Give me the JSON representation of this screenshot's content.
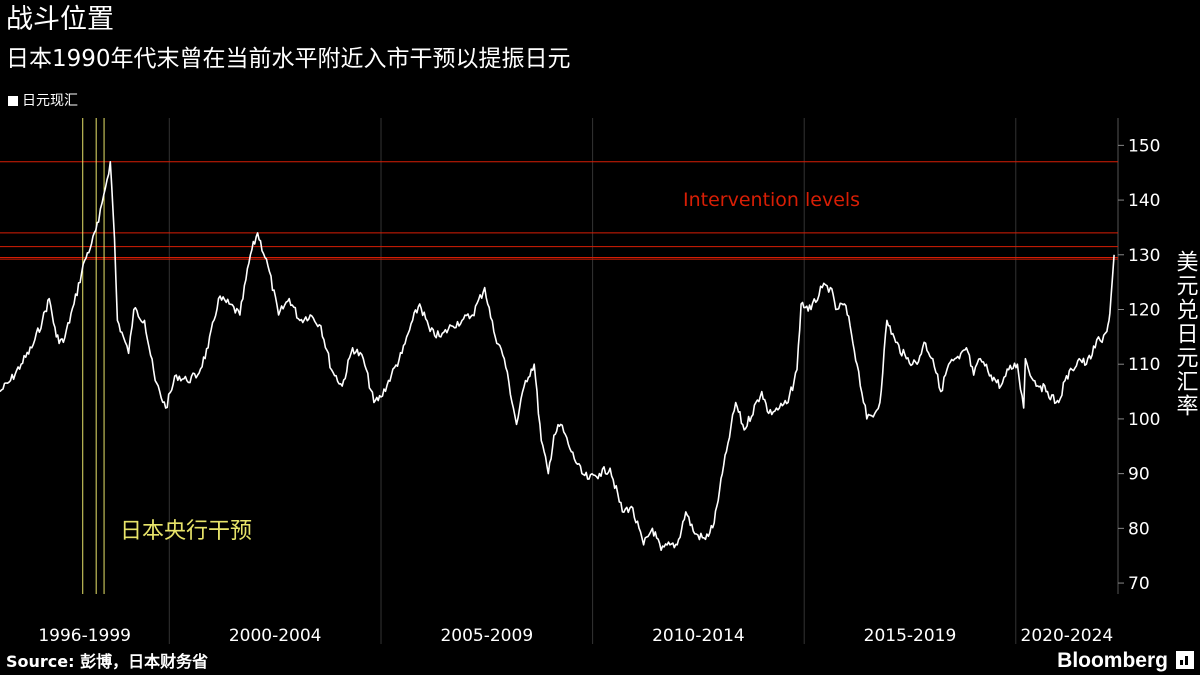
{
  "header": {
    "title": "战斗位置",
    "subtitle": "日本1990年代末曾在当前水平附近入市干预以提振日元"
  },
  "legend": {
    "label": "日元现汇"
  },
  "footer": {
    "source": "Source: 彭博，日本财务省",
    "brand": "Bloomberg"
  },
  "colors": {
    "background": "#000000",
    "series": "#ffffff",
    "intervention_levels": "#d81e05",
    "boj_intervention": "#e8e46a",
    "grid": "#333333"
  },
  "icons": {
    "brand_mark": "bloomberg-terminal-icon"
  },
  "chart_data": {
    "type": "line",
    "title": "战斗位置",
    "subtitle": "日本1990年代末曾在当前水平附近入市干预以提振日元",
    "ylabel": "美元兑日元汇率",
    "xlabel": "",
    "ylim": [
      68,
      155
    ],
    "xlim": [
      "1996-01-01",
      "2022-06-01"
    ],
    "y_ticks": [
      70,
      80,
      90,
      100,
      110,
      120,
      130,
      140,
      150
    ],
    "grid": false,
    "legend_position": "top-left",
    "period_labels": [
      {
        "label": "1996-1999",
        "start": "1996-01-01",
        "end": "2000-01-01"
      },
      {
        "label": "2000-2004",
        "start": "2000-01-01",
        "end": "2005-01-01"
      },
      {
        "label": "2005-2009",
        "start": "2005-01-01",
        "end": "2010-01-01"
      },
      {
        "label": "2010-2014",
        "start": "2010-01-01",
        "end": "2015-01-01"
      },
      {
        "label": "2015-2019",
        "start": "2015-01-01",
        "end": "2020-01-01"
      },
      {
        "label": "2020-2024",
        "start": "2020-01-01",
        "end": "2022-06-01"
      }
    ],
    "series": [
      {
        "name": "日元现汇",
        "x": [
          "1996-01-01",
          "1996-04-01",
          "1996-07-01",
          "1996-10-01",
          "1997-01-01",
          "1997-03-01",
          "1997-05-01",
          "1997-07-01",
          "1997-10-01",
          "1998-01-01",
          "1998-03-01",
          "1998-05-01",
          "1998-06-15",
          "1998-08-10",
          "1998-09-15",
          "1998-10-10",
          "1998-12-01",
          "1999-01-15",
          "1999-03-01",
          "1999-06-01",
          "1999-09-01",
          "1999-12-01",
          "2000-03-01",
          "2000-06-01",
          "2000-09-01",
          "2000-12-01",
          "2001-03-01",
          "2001-06-01",
          "2001-09-01",
          "2001-12-01",
          "2002-02-01",
          "2002-05-01",
          "2002-08-01",
          "2002-11-01",
          "2003-02-01",
          "2003-05-01",
          "2003-08-01",
          "2003-11-01",
          "2004-02-01",
          "2004-05-01",
          "2004-08-01",
          "2004-11-01",
          "2005-01-01",
          "2005-04-01",
          "2005-07-01",
          "2005-10-01",
          "2005-12-01",
          "2006-03-01",
          "2006-06-01",
          "2006-09-01",
          "2006-12-01",
          "2007-03-01",
          "2007-06-15",
          "2007-09-01",
          "2007-12-01",
          "2008-03-15",
          "2008-06-01",
          "2008-08-15",
          "2008-10-15",
          "2008-12-15",
          "2009-02-01",
          "2009-04-01",
          "2009-07-01",
          "2009-10-01",
          "2009-12-01",
          "2010-03-01",
          "2010-06-01",
          "2010-09-15",
          "2010-12-01",
          "2011-03-17",
          "2011-06-01",
          "2011-08-15",
          "2011-10-31",
          "2012-01-01",
          "2012-03-15",
          "2012-06-01",
          "2012-09-01",
          "2012-11-15",
          "2013-01-01",
          "2013-03-01",
          "2013-05-20",
          "2013-08-01",
          "2013-12-31",
          "2014-03-01",
          "2014-06-01",
          "2014-08-15",
          "2014-10-31",
          "2014-12-05",
          "2015-03-01",
          "2015-06-05",
          "2015-08-15",
          "2015-10-01",
          "2015-12-15",
          "2016-02-01",
          "2016-04-01",
          "2016-06-24",
          "2016-09-01",
          "2016-10-15",
          "2016-12-15",
          "2017-03-01",
          "2017-06-01",
          "2017-09-01",
          "2017-11-01",
          "2018-01-15",
          "2018-03-25",
          "2018-06-01",
          "2018-09-01",
          "2018-11-01",
          "2019-01-03",
          "2019-03-01",
          "2019-06-01",
          "2019-08-25",
          "2019-11-01",
          "2020-01-15",
          "2020-03-09",
          "2020-03-24",
          "2020-06-01",
          "2020-08-01",
          "2020-10-01",
          "2020-12-15",
          "2021-01-05",
          "2021-03-01",
          "2021-05-01",
          "2021-07-01",
          "2021-09-01",
          "2021-11-15",
          "2021-12-15",
          "2022-01-15",
          "2022-02-25",
          "2022-03-15",
          "2022-04-01",
          "2022-04-28"
        ],
        "y": [
          105,
          107,
          110,
          113,
          118,
          122,
          115,
          114,
          121,
          129,
          132,
          136,
          141,
          147,
          133,
          118,
          115,
          112,
          120,
          118,
          107,
          102,
          108,
          107,
          108,
          113,
          122,
          121,
          119,
          130,
          134,
          128,
          119,
          122,
          118,
          119,
          117,
          109,
          106,
          113,
          111,
          103,
          104,
          108,
          112,
          118,
          121,
          116,
          115,
          117,
          118,
          119,
          124,
          116,
          111,
          99,
          107,
          110,
          96,
          90,
          97,
          99,
          94,
          90,
          89,
          90,
          91,
          83,
          84,
          77,
          80,
          76,
          77,
          77,
          83,
          79,
          78,
          81,
          87,
          94,
          103,
          98,
          105,
          101,
          102,
          103,
          109,
          121,
          120,
          124,
          124,
          120,
          121,
          117,
          110,
          100,
          101,
          103,
          118,
          114,
          111,
          110,
          114,
          111,
          105,
          110,
          111,
          113,
          108,
          111,
          108,
          106,
          109,
          110,
          102,
          111,
          107,
          106,
          105,
          103,
          103,
          107,
          109,
          111,
          110,
          113,
          115,
          114,
          116,
          118,
          122,
          130
        ]
      }
    ],
    "annotations": [
      {
        "text": "Intervention levels",
        "type": "horizontal_lines",
        "color": "#d81e05",
        "y_values": [
          147,
          134,
          131.5,
          129.5,
          129.2
        ]
      },
      {
        "text": "日本央行干预",
        "type": "vertical_lines",
        "color": "#e8e46a",
        "x_values": [
          "1997-12-15",
          "1998-04-10",
          "1998-06-17"
        ]
      }
    ]
  }
}
